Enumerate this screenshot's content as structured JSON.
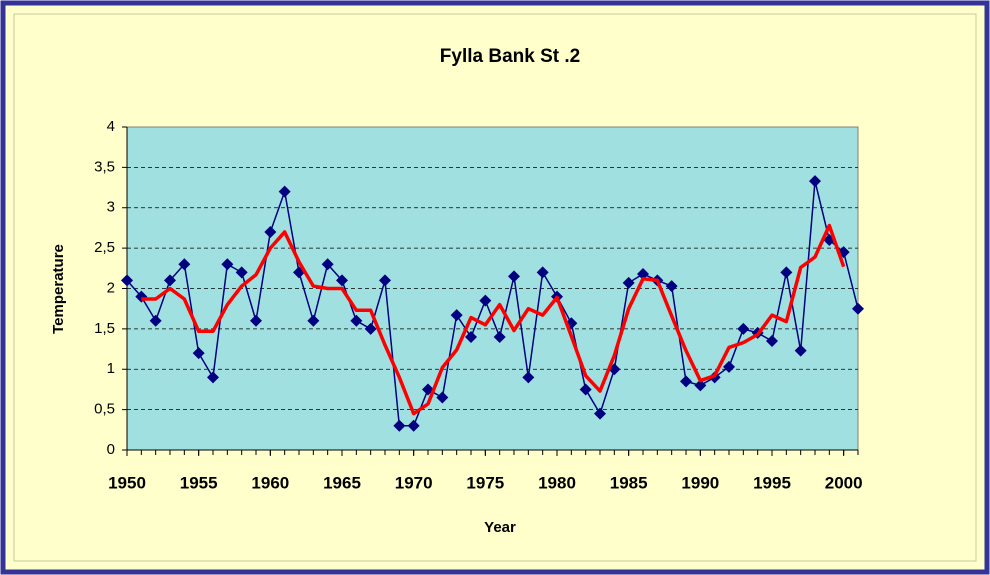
{
  "chart_data": {
    "type": "line",
    "title": "Fylla Bank St .2",
    "x_label": "Year",
    "y_label": "Temperature",
    "x": [
      1950,
      1951,
      1952,
      1953,
      1954,
      1955,
      1956,
      1957,
      1958,
      1959,
      1960,
      1961,
      1962,
      1963,
      1964,
      1965,
      1966,
      1967,
      1968,
      1969,
      1970,
      1971,
      1972,
      1973,
      1974,
      1975,
      1976,
      1977,
      1978,
      1979,
      1980,
      1981,
      1982,
      1983,
      1984,
      1985,
      1986,
      1987,
      1988,
      1989,
      1990,
      1991,
      1992,
      1993,
      1994,
      1995,
      1996,
      1997,
      1998,
      1999,
      2000,
      2001
    ],
    "series": [
      {
        "color": "#000080",
        "marker": true,
        "values": [
          2.1,
          1.9,
          1.6,
          2.1,
          2.3,
          1.2,
          0.9,
          2.3,
          2.2,
          1.6,
          2.7,
          3.2,
          2.2,
          1.6,
          2.3,
          2.1,
          1.6,
          1.5,
          2.1,
          0.3,
          0.3,
          0.75,
          0.65,
          1.67,
          1.4,
          1.85,
          1.4,
          2.15,
          0.9,
          2.2,
          1.9,
          1.57,
          0.75,
          0.45,
          1.0,
          2.07,
          2.18,
          2.1,
          2.03,
          0.85,
          0.8,
          0.9,
          1.03,
          1.5,
          1.45,
          1.35,
          2.2,
          1.23,
          3.33,
          2.6,
          2.45,
          1.75
        ]
      },
      {
        "color": "#ff0000",
        "marker": false,
        "values": [
          null,
          1.87,
          1.87,
          2.0,
          1.87,
          1.47,
          1.47,
          1.8,
          2.03,
          2.17,
          2.5,
          2.7,
          2.33,
          2.03,
          2.0,
          2.0,
          1.73,
          1.73,
          1.3,
          0.9,
          0.45,
          0.57,
          1.02,
          1.24,
          1.64,
          1.55,
          1.8,
          1.48,
          1.75,
          1.67,
          1.89,
          1.41,
          0.92,
          0.73,
          1.17,
          1.75,
          2.12,
          2.1,
          1.66,
          1.23,
          0.86,
          0.92,
          1.27,
          1.33,
          1.43,
          1.67,
          1.59,
          2.26,
          2.39,
          2.78,
          2.27,
          null
        ]
      }
    ],
    "xlim": [
      1950,
      2001
    ],
    "xticks": [
      1950,
      1955,
      1960,
      1965,
      1970,
      1975,
      1980,
      1985,
      1990,
      1995,
      2000
    ],
    "ylim": [
      0,
      4
    ],
    "yticks": [
      0,
      {
        "value": 0.5,
        "label": "0,5"
      },
      1,
      {
        "value": 1.5,
        "label": "1,5"
      },
      2,
      {
        "value": 2.5,
        "label": "2,5"
      },
      3,
      {
        "value": 3.5,
        "label": "3,5"
      },
      4
    ],
    "grid": true,
    "plot_background": "#a0e0e0"
  }
}
